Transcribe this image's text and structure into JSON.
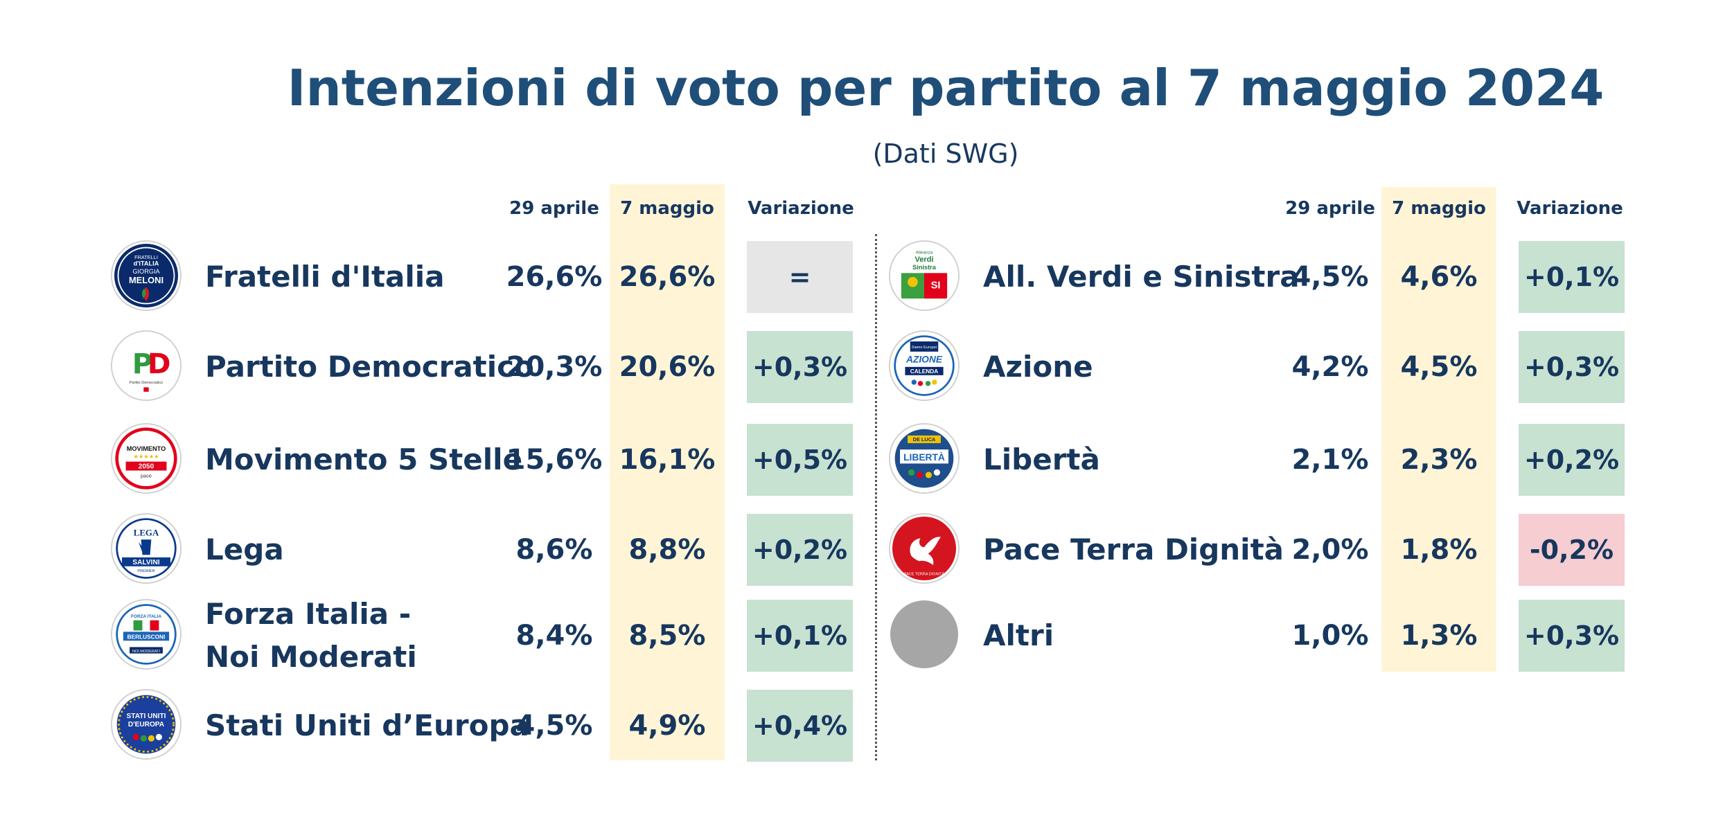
{
  "title": "Intenzioni di voto per partito al 7  maggio 2024",
  "subtitle": "(Dati SWG)",
  "colors": {
    "title": "#1f4e79",
    "text": "#17375e",
    "highlight": "#fff5d6",
    "positive": "#c7e2d1",
    "negative": "#f6cdd1",
    "neutral": "#e6e6e6"
  },
  "headers": {
    "left": {
      "prev": "29  aprile",
      "curr": "7 maggio",
      "var": "Variazione"
    },
    "right": {
      "prev": "29 aprile",
      "curr": "7 maggio",
      "var": "Variazione"
    }
  },
  "chart_data": {
    "type": "table",
    "title": "Intenzioni di voto per partito al 7  maggio 2024",
    "subtitle": "(Dati SWG)",
    "columns": [
      "29 aprile",
      "7 maggio",
      "Variazione"
    ],
    "left_rows": [
      {
        "party": "Fratelli d'Italia",
        "name_lines": [
          "Fratelli d'Italia"
        ],
        "logo_icon": "fratelli-italia-logo",
        "prev": "26,6%",
        "curr": "26,6%",
        "var": "=",
        "var_type": "neutral"
      },
      {
        "party": "Partito Democratico",
        "name_lines": [
          "Partito Democratico"
        ],
        "logo_icon": "pd-logo",
        "prev": "20,3%",
        "curr": "20,6%",
        "var": "+0,3%",
        "var_type": "positive"
      },
      {
        "party": "Movimento 5 Stelle",
        "name_lines": [
          "Movimento 5 Stelle"
        ],
        "logo_icon": "m5s-logo",
        "prev": "15,6%",
        "curr": "16,1%",
        "var": "+0,5%",
        "var_type": "positive"
      },
      {
        "party": "Lega",
        "name_lines": [
          "Lega"
        ],
        "logo_icon": "lega-logo",
        "prev": "8,6%",
        "curr": "8,8%",
        "var": "+0,2%",
        "var_type": "positive"
      },
      {
        "party": "Forza Italia - Noi Moderati",
        "name_lines": [
          "Forza Italia -",
          "Noi Moderati"
        ],
        "logo_icon": "forza-italia-logo",
        "prev": "8,4%",
        "curr": "8,5%",
        "var": "+0,1%",
        "var_type": "positive"
      },
      {
        "party": "Stati Uniti d’Europa",
        "name_lines": [
          "Stati Uniti d’Europa"
        ],
        "logo_icon": "stati-uniti-europa-logo",
        "prev": "4,5%",
        "curr": "4,9%",
        "var": "+0,4%",
        "var_type": "positive"
      }
    ],
    "right_rows": [
      {
        "party": "All. Verdi e Sinistra",
        "name_lines": [
          "All. Verdi e Sinistra"
        ],
        "logo_icon": "avs-logo",
        "prev": "4,5%",
        "curr": "4,6%",
        "var": "+0,1%",
        "var_type": "positive"
      },
      {
        "party": "Azione",
        "name_lines": [
          "Azione"
        ],
        "logo_icon": "azione-logo",
        "prev": "4,2%",
        "curr": "4,5%",
        "var": "+0,3%",
        "var_type": "positive"
      },
      {
        "party": "Libertà",
        "name_lines": [
          "Libertà"
        ],
        "logo_icon": "liberta-logo",
        "prev": "2,1%",
        "curr": "2,3%",
        "var": "+0,2%",
        "var_type": "positive"
      },
      {
        "party": "Pace Terra Dignità",
        "name_lines": [
          "Pace Terra Dignità"
        ],
        "logo_icon": "pace-terra-dignita-logo",
        "prev": "2,0%",
        "curr": "1,8%",
        "var": "-0,2%",
        "var_type": "negative"
      },
      {
        "party": "Altri",
        "name_lines": [
          "Altri"
        ],
        "logo_icon": "altri-gray-circle-icon",
        "prev": "1,0%",
        "curr": "1,3%",
        "var": "+0,3%",
        "var_type": "positive"
      }
    ]
  },
  "logos": {
    "fdi": {
      "l1": "FRATELLI",
      "l2": "d'ITALIA",
      "l3": "GIORGIA",
      "l4": "MELONI"
    },
    "pd": {
      "l1": "PD",
      "l2": "Partito Democratico"
    },
    "m5s": {
      "l1": "MOVIMENTO",
      "l2": "2050",
      "l3": "pace"
    },
    "lega": {
      "l1": "LEGA",
      "l2": "SALVINI",
      "l3": "PREMIER"
    },
    "fi": {
      "l1": "FORZA ITALIA",
      "l2": "BERLUSCONI",
      "l3": "NOI MODERATI"
    },
    "sue": {
      "l1": "STATI UNITI",
      "l2": "D'EUROPA"
    },
    "avs": {
      "l1": "Alleanza",
      "l2": "Verdi",
      "l3": "Sinistra",
      "l4": "SI"
    },
    "azione": {
      "l1": "Siamo Europei",
      "l2": "AZIONE",
      "l3": "CALENDA"
    },
    "liberta": {
      "l1": "DE LUCA",
      "l2": "LIBERTÀ"
    },
    "ptd": {
      "l1": "PACE TERRA DIGNITÀ"
    }
  }
}
